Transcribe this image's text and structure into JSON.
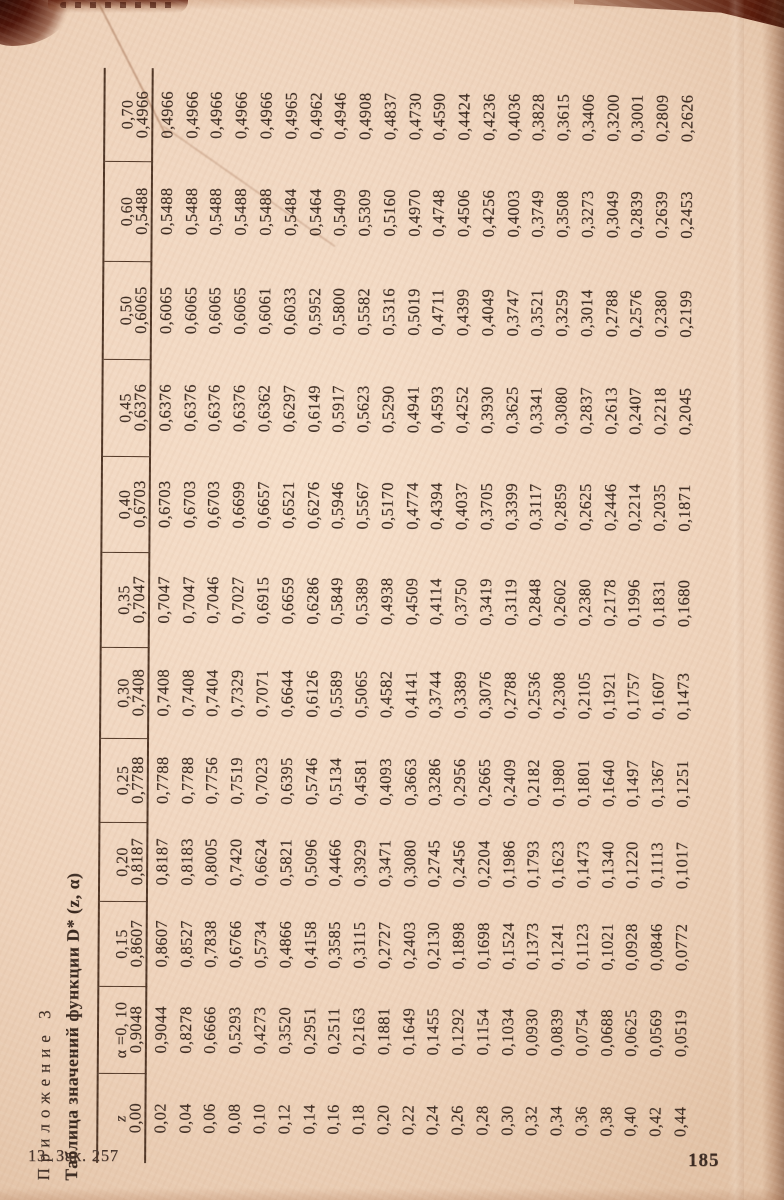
{
  "page": {
    "appendix_label": "Приложение 3",
    "table_title": "Таблица значений функции D* (z, α)",
    "footer_left": "13. Зак. 257",
    "page_number": "185"
  },
  "colors": {
    "paper": "#f1d7c1",
    "ink": "#362720",
    "table_line": "#4e3525",
    "torn_edge": "#4e150a"
  },
  "table": {
    "orientation": "rotated-90-ccw",
    "col_headers": [
      "z",
      "α =0, 10",
      "0,15",
      "0,20",
      "0,25",
      "0,30",
      "0,35",
      "0,40",
      "0,45",
      "0,50",
      "0,60",
      "0,70"
    ],
    "rows": [
      [
        "0,00",
        "0,9048",
        "0,8607",
        "0,8187",
        "0,7788",
        "0,7408",
        "0,7047",
        "0,6703",
        "0,6376",
        "0,6065",
        "0,5488",
        "0,4966"
      ],
      [
        "0,02",
        "0,9044",
        "0,8607",
        "0,8187",
        "0,7788",
        "0,7408",
        "0,7047",
        "0,6703",
        "0,6376",
        "0,6065",
        "0,5488",
        "0,4966"
      ],
      [
        "0,04",
        "0,8278",
        "0,8527",
        "0,8183",
        "0,7788",
        "0,7408",
        "0,7047",
        "0,6703",
        "0,6376",
        "0,6065",
        "0,5488",
        "0,4966"
      ],
      [
        "0,06",
        "0,6666",
        "0,7838",
        "0,8005",
        "0,7756",
        "0,7404",
        "0,7046",
        "0,6703",
        "0,6376",
        "0,6065",
        "0,5488",
        "0,4966"
      ],
      [
        "0,08",
        "0,5293",
        "0,6766",
        "0,7420",
        "0,7519",
        "0,7329",
        "0,7027",
        "0,6699",
        "0,6376",
        "0,6065",
        "0,5488",
        "0,4966"
      ],
      [
        "0,10",
        "0,4273",
        "0,5734",
        "0,6624",
        "0,7023",
        "0,7071",
        "0,6915",
        "0,6657",
        "0,6362",
        "0,6061",
        "0,5488",
        "0,4966"
      ],
      [
        "0,12",
        "0,3520",
        "0,4866",
        "0,5821",
        "0,6395",
        "0,6644",
        "0,6659",
        "0,6521",
        "0,6297",
        "0,6033",
        "0,5484",
        "0,4965"
      ],
      [
        "0,14",
        "0,2951",
        "0,4158",
        "0,5096",
        "0,5746",
        "0,6126",
        "0,6286",
        "0,6276",
        "0,6149",
        "0,5952",
        "0,5464",
        "0,4962"
      ],
      [
        "0,16",
        "0,2511",
        "0,3585",
        "0,4466",
        "0,5134",
        "0,5589",
        "0,5849",
        "0,5946",
        "0,5917",
        "0,5800",
        "0,5409",
        "0,4946"
      ],
      [
        "0,18",
        "0,2163",
        "0,3115",
        "0,3929",
        "0,4581",
        "0,5065",
        "0,5389",
        "0,5567",
        "0,5623",
        "0,5582",
        "0,5309",
        "0,4908"
      ],
      [
        "0,20",
        "0,1881",
        "0,2727",
        "0,3471",
        "0,4093",
        "0,4582",
        "0,4938",
        "0,5170",
        "0,5290",
        "0,5316",
        "0,5160",
        "0,4837"
      ],
      [
        "0,22",
        "0,1649",
        "0,2403",
        "0,3080",
        "0,3663",
        "0,4141",
        "0,4509",
        "0,4774",
        "0,4941",
        "0,5019",
        "0,4970",
        "0,4730"
      ],
      [
        "0,24",
        "0,1455",
        "0,2130",
        "0,2745",
        "0,3286",
        "0,3744",
        "0,4114",
        "0,4394",
        "0,4593",
        "0,4711",
        "0,4748",
        "0,4590"
      ],
      [
        "0,26",
        "0,1292",
        "0,1898",
        "0,2456",
        "0,2956",
        "0,3389",
        "0,3750",
        "0,4037",
        "0,4252",
        "0,4399",
        "0,4506",
        "0,4424"
      ],
      [
        "0,28",
        "0,1154",
        "0,1698",
        "0,2204",
        "0,2665",
        "0,3076",
        "0,3419",
        "0,3705",
        "0,3930",
        "0,4049",
        "0,4256",
        "0,4236"
      ],
      [
        "0,30",
        "0,1034",
        "0,1524",
        "0,1986",
        "0,2409",
        "0,2788",
        "0,3119",
        "0,3399",
        "0,3625",
        "0,3747",
        "0,4003",
        "0,4036"
      ],
      [
        "0,32",
        "0,0930",
        "0,1373",
        "0,1793",
        "0,2182",
        "0,2536",
        "0,2848",
        "0,3117",
        "0,3341",
        "0,3521",
        "0,3749",
        "0,3828"
      ],
      [
        "0,34",
        "0,0839",
        "0,1241",
        "0,1623",
        "0,1980",
        "0,2308",
        "0,2602",
        "0,2859",
        "0,3080",
        "0,3259",
        "0,3508",
        "0,3615"
      ],
      [
        "0,36",
        "0,0754",
        "0,1123",
        "0,1473",
        "0,1801",
        "0,2105",
        "0,2380",
        "0,2625",
        "0,2837",
        "0,3014",
        "0,3273",
        "0,3406"
      ],
      [
        "0,38",
        "0,0688",
        "0,1021",
        "0,1340",
        "0,1640",
        "0,1921",
        "0,2178",
        "0,2446",
        "0,2613",
        "0,2788",
        "0,3049",
        "0,3200"
      ],
      [
        "0,40",
        "0,0625",
        "0,0928",
        "0,1220",
        "0,1497",
        "0,1757",
        "0,1996",
        "0,2214",
        "0,2407",
        "0,2576",
        "0,2839",
        "0,3001"
      ],
      [
        "0,42",
        "0,0569",
        "0,0846",
        "0,1113",
        "0,1367",
        "0,1607",
        "0,1831",
        "0,2035",
        "0,2218",
        "0,2380",
        "0,2639",
        "0,2809"
      ],
      [
        "0,44",
        "0,0519",
        "0,0772",
        "0,1017",
        "0,1251",
        "0,1473",
        "0,1680",
        "0,1871",
        "0,2045",
        "0,2199",
        "0,2453",
        "0,2626"
      ]
    ]
  }
}
